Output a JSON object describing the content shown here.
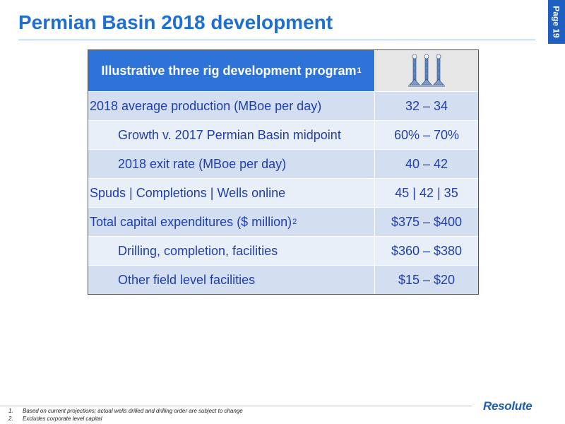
{
  "header": {
    "title": "Permian Basin 2018 development",
    "page_tab": "Page 19"
  },
  "table": {
    "header_label": "Illustrative three rig development program",
    "header_sup": "1",
    "header_icon": "drilling-rigs-icon",
    "rows": [
      {
        "label": "2018 average production (MBoe per day)",
        "sup": "",
        "value": "32 – 34",
        "indent": false
      },
      {
        "label": "Growth v. 2017 Permian Basin midpoint",
        "sup": "",
        "value": "60% – 70%",
        "indent": true
      },
      {
        "label": "2018 exit rate (MBoe per day)",
        "sup": "",
        "value": "40 – 42",
        "indent": true
      },
      {
        "label": "Spuds | Completions | Wells online",
        "sup": "",
        "value": "45 | 42 | 35",
        "indent": false
      },
      {
        "label": "Total capital expenditures ($ million)",
        "sup": "2",
        "value": "$375 – $400",
        "indent": false
      },
      {
        "label": "Drilling, completion, facilities",
        "sup": "",
        "value": "$360 – $380",
        "indent": true
      },
      {
        "label": "Other field level facilities",
        "sup": "",
        "value": "$15 – $20",
        "indent": true
      }
    ]
  },
  "footnotes": [
    {
      "num": "1.",
      "text": "Based on current projections; actual wells drilled and drilling order are subject to change"
    },
    {
      "num": "2.",
      "text": "Excludes corporate level capital"
    }
  ],
  "logo": "Resolute",
  "colors": {
    "title": "#1f6fd0",
    "header_bg": "#2d73d8",
    "row_dark": "#d3dff0",
    "row_light": "#e9eff8",
    "text": "#1f3fb0"
  }
}
